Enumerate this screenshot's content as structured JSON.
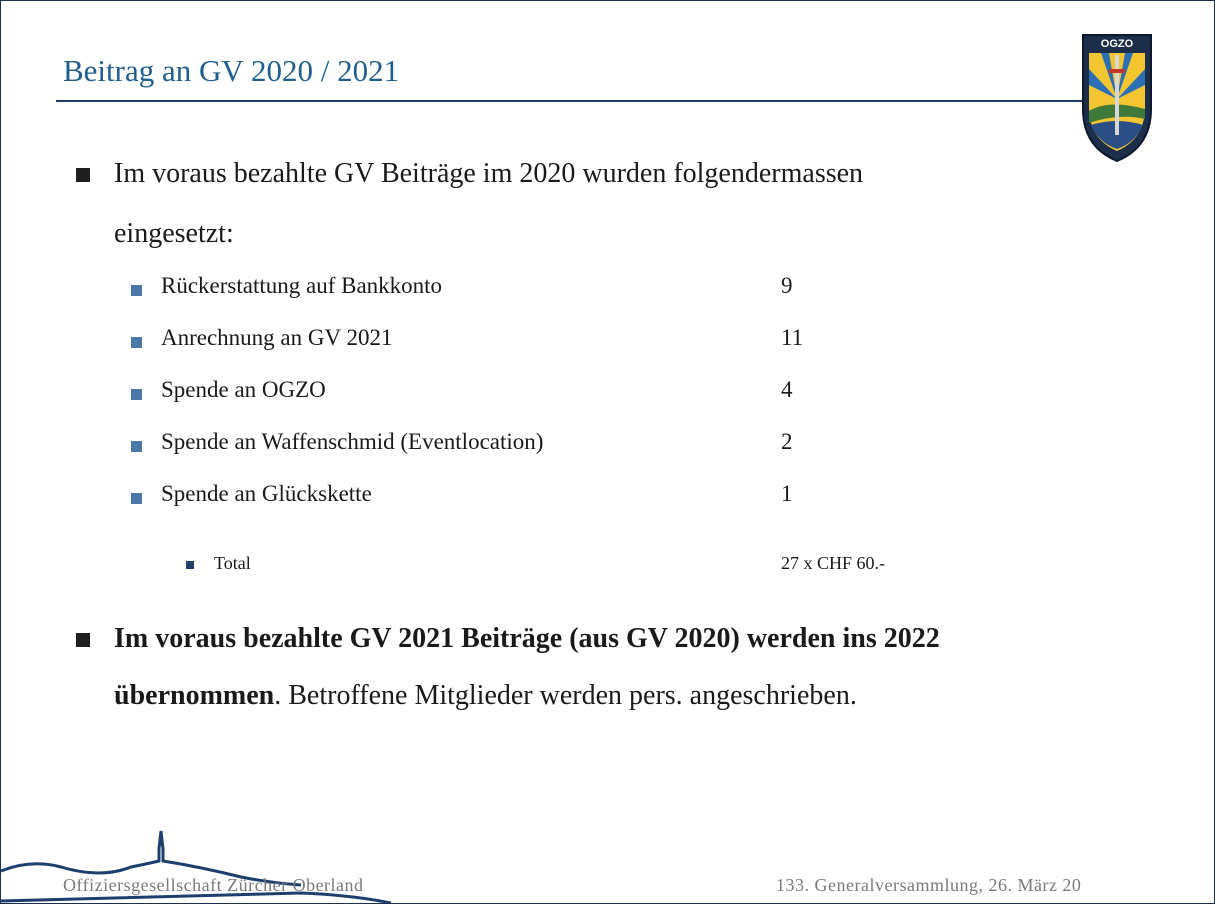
{
  "header": {
    "title": "Beitrag an GV 2020 / 2021",
    "logo_text": "OGZO"
  },
  "bullets": {
    "intro": {
      "line1": "Im voraus bezahlte GV Beiträge im 2020 wurden folgendermassen",
      "line2": "eingesetzt:"
    },
    "items": [
      {
        "label": "Rückerstattung auf Bankkonto",
        "value": "9"
      },
      {
        "label": "Anrechnung an GV 2021",
        "value": "11"
      },
      {
        "label": "Spende an OGZO",
        "value": "4"
      },
      {
        "label": "Spende an Waffenschmid (Eventlocation)",
        "value": "2"
      },
      {
        "label": "Spende an Glückskette",
        "value": "1"
      }
    ],
    "total": {
      "label": "Total",
      "value": "27 x CHF 60.-"
    },
    "second": {
      "bold_line1": "Im voraus bezahlte GV 2021 Beiträge (aus GV 2020) werden ins 2022",
      "bold_line2": "übernommen",
      "rest": ". Betroffene Mitglieder werden pers. angeschrieben."
    }
  },
  "footer": {
    "left": "Offiziersgesellschaft Zürcher Oberland",
    "right": "133. Generalversammlung, 26. März 20"
  }
}
